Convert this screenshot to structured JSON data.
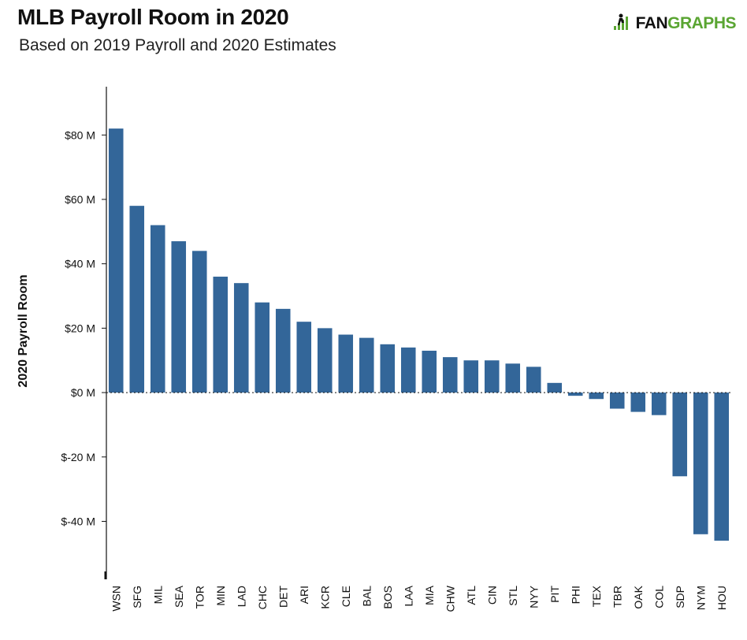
{
  "header": {
    "title": "MLB Payroll Room in 2020",
    "subtitle": "Based on 2019 Payroll and 2020 Estimates",
    "logo_fan": "FAN",
    "logo_graphs": "GRAPHS"
  },
  "colors": {
    "bar": "#336699",
    "logo_green": "#5aa532"
  },
  "chart_data": {
    "type": "bar",
    "title": "MLB Payroll Room in 2020",
    "subtitle": "Based on 2019 Payroll and 2020 Estimates",
    "xlabel": "",
    "ylabel": "2020 Payroll Room",
    "unit": "$M",
    "ylim": [
      -58,
      95
    ],
    "yticks": [
      80,
      60,
      40,
      20,
      0,
      -20,
      -40
    ],
    "ytick_labels": [
      "$80 M",
      "$60 M",
      "$40 M",
      "$20 M",
      "$0 M",
      "$-20 M",
      "$-40 M"
    ],
    "categories": [
      "WSN",
      "SFG",
      "MIL",
      "SEA",
      "TOR",
      "MIN",
      "LAD",
      "CHC",
      "DET",
      "ARI",
      "KCR",
      "CLE",
      "BAL",
      "BOS",
      "LAA",
      "MIA",
      "CHW",
      "ATL",
      "CIN",
      "STL",
      "NYY",
      "PIT",
      "PHI",
      "TEX",
      "TBR",
      "OAK",
      "COL",
      "SDP",
      "NYM",
      "HOU"
    ],
    "values": [
      82,
      58,
      52,
      47,
      44,
      36,
      34,
      28,
      26,
      22,
      20,
      18,
      17,
      15,
      14,
      13,
      11,
      10,
      10,
      9,
      8,
      3,
      -1,
      -2,
      -5,
      -6,
      -7,
      -26,
      -44,
      -46
    ],
    "zero_line": "dotted",
    "grid": false,
    "legend": "none"
  }
}
